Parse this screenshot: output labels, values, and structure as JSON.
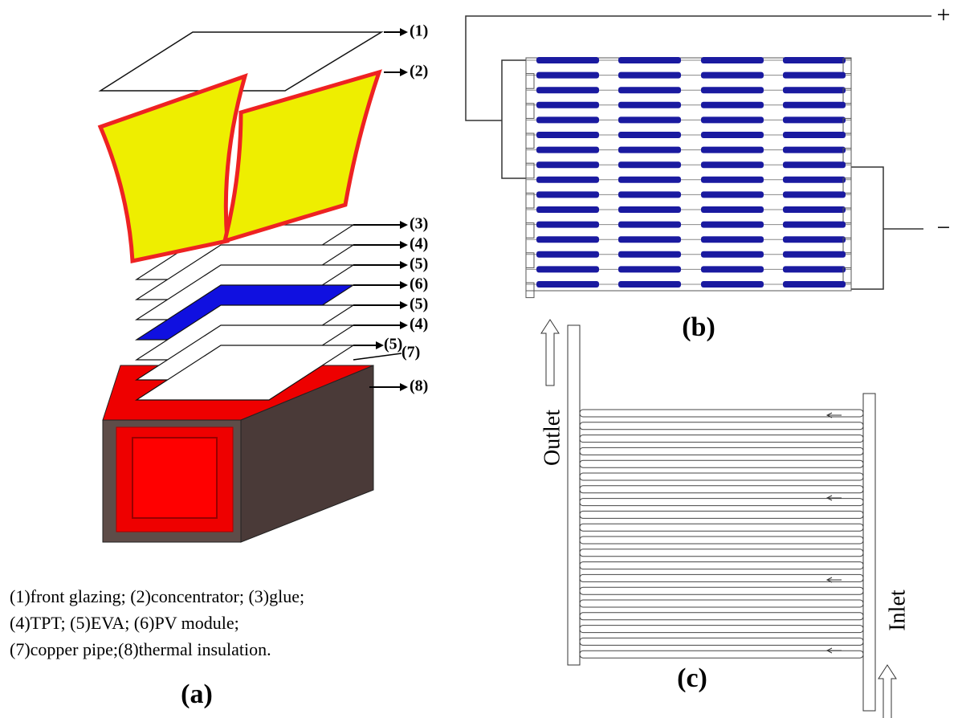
{
  "panel_a": {
    "callouts": [
      "(1)",
      "(2)",
      "(3)",
      "(4)",
      "(5)",
      "(6)",
      "(5)",
      "(4)",
      "(5)",
      "(7)",
      "(8)"
    ],
    "legend": [
      "(1)front glazing; (2)concentrator; (3)glue;",
      "(4)TPT; (5)EVA; (6)PV module;",
      "(7)copper pipe;(8)thermal insulation."
    ],
    "label": "(a)"
  },
  "panel_b": {
    "plus": "+",
    "minus": "−",
    "label": "(b)"
  },
  "panel_c": {
    "outlet": "Outlet",
    "inlet": "Inlet",
    "label": "(c)"
  }
}
